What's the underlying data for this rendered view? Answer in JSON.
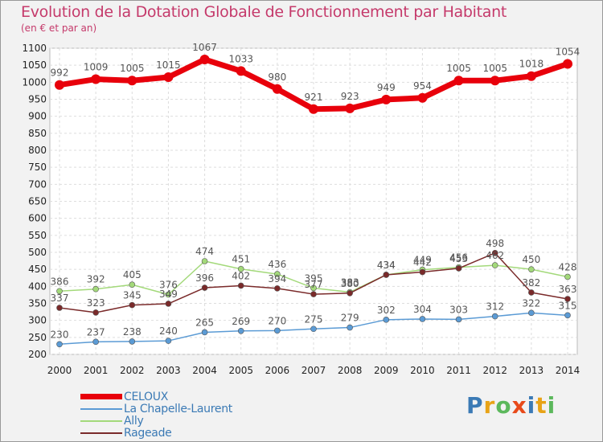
{
  "header": {
    "title": "Evolution de la Dotation Globale de Fonctionnement par Habitant",
    "subtitle": "(en € et par an)"
  },
  "logo": {
    "text": "Proxiti",
    "colors": [
      "#3b7ab5",
      "#e8a317",
      "#5cb85c",
      "#e84a1a",
      "#3b7ab5",
      "#e8a317",
      "#5cb85c"
    ]
  },
  "chart_data": {
    "type": "line",
    "categories": [
      "2000",
      "2001",
      "2002",
      "2003",
      "2004",
      "2005",
      "2006",
      "2007",
      "2008",
      "2009",
      "2010",
      "2011",
      "2012",
      "2013",
      "2014"
    ],
    "ylim": [
      200,
      1100
    ],
    "yticks": [
      200,
      250,
      300,
      350,
      400,
      450,
      500,
      550,
      600,
      650,
      700,
      750,
      800,
      850,
      900,
      950,
      1000,
      1050,
      1100
    ],
    "grid": true,
    "legend_position": "bottom-left",
    "series": [
      {
        "name": "CELOUX",
        "color": "#e8000b",
        "width": 7,
        "radius": 6,
        "values": [
          992,
          1009,
          1005,
          1015,
          1067,
          1033,
          980,
          921,
          923,
          949,
          954,
          1005,
          1005,
          1018,
          1054
        ]
      },
      {
        "name": "La Chapelle-Laurent",
        "color": "#5b9bd5",
        "width": 1.5,
        "radius": 3.5,
        "values": [
          230,
          237,
          238,
          240,
          265,
          269,
          270,
          275,
          279,
          302,
          304,
          303,
          312,
          322,
          315
        ]
      },
      {
        "name": "Ally",
        "color": "#a3d97a",
        "width": 1.5,
        "radius": 3.5,
        "values": [
          386,
          392,
          405,
          376,
          474,
          451,
          436,
          395,
          383,
          434,
          449,
          456,
          462,
          450,
          428
        ]
      },
      {
        "name": "Rageade",
        "color": "#7a2a2a",
        "width": 1.5,
        "radius": 3.5,
        "values": [
          337,
          323,
          345,
          349,
          396,
          402,
          394,
          377,
          380,
          434,
          442,
          453,
          498,
          382,
          363
        ]
      }
    ]
  }
}
